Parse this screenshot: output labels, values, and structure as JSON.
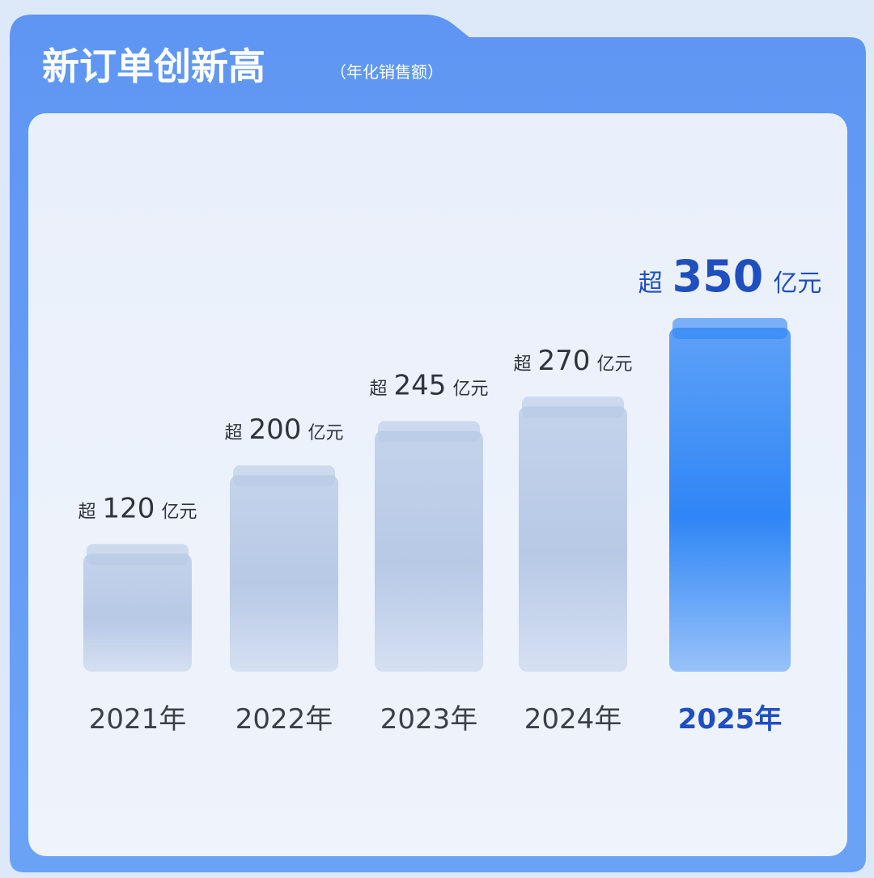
{
  "chart_data": {
    "type": "bar",
    "title": "新订单创新高",
    "subtitle": "（年化销售额）",
    "categories": [
      "2021年",
      "2022年",
      "2023年",
      "2024年",
      "2025年"
    ],
    "values": [
      120,
      200,
      245,
      270,
      350
    ],
    "label_prefix": "超",
    "label_suffix": "亿元",
    "colors": [
      "#b7c9e6",
      "#b7c9e6",
      "#b7c9e6",
      "#b7c9e6",
      "#2f86f6"
    ],
    "label_colors": [
      "#3a3f4a",
      "#3a3f4a",
      "#3a3f4a",
      "#3a3f4a",
      "#1f4fbf"
    ]
  }
}
